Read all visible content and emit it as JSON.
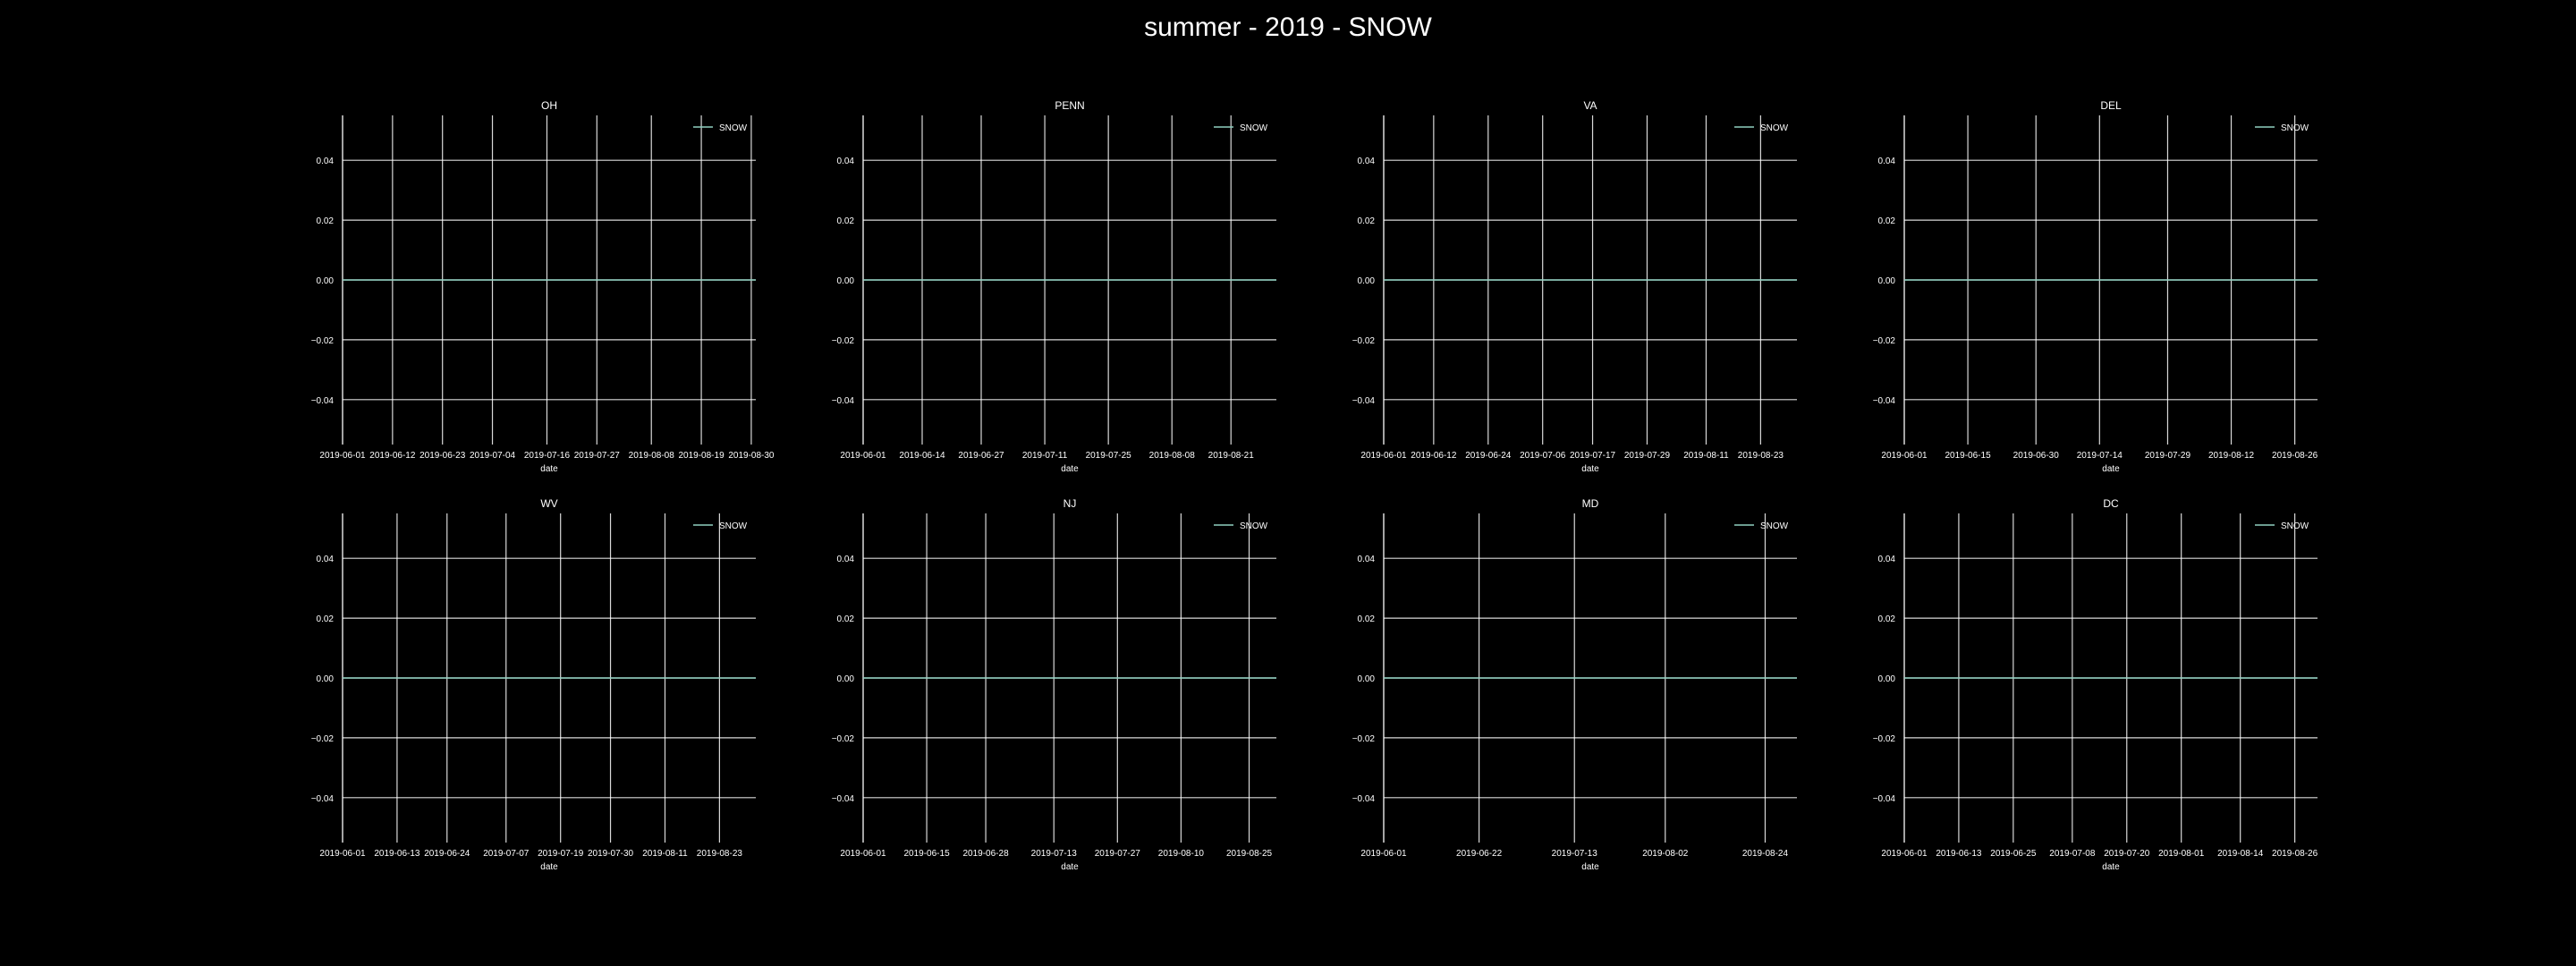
{
  "title": "summer - 2019 - SNOW",
  "colors": {
    "background": "#000000",
    "grid": "#ffffff",
    "text": "#ffffff",
    "series": "#8fd0c0"
  },
  "chart_data": [
    {
      "type": "line",
      "title": "OH",
      "xlabel": "date",
      "ylabel": "",
      "xlim": [
        "2019-06-01",
        "2019-08-31"
      ],
      "ylim": [
        -0.055,
        0.055
      ],
      "x_ticks": [
        "2019-06-01",
        "2019-06-12",
        "2019-06-23",
        "2019-07-04",
        "2019-07-16",
        "2019-07-27",
        "2019-08-08",
        "2019-08-19",
        "2019-08-30"
      ],
      "y_ticks": [
        0.04,
        0.02,
        0.0,
        -0.02,
        -0.04
      ],
      "grid": true,
      "legend": "top-right",
      "series": [
        {
          "name": "SNOW",
          "x": [
            "2019-06-01",
            "2019-08-31"
          ],
          "values": [
            0.0,
            0.0
          ]
        }
      ]
    },
    {
      "type": "line",
      "title": "PENN",
      "xlabel": "date",
      "ylabel": "",
      "xlim": [
        "2019-06-01",
        "2019-08-31"
      ],
      "ylim": [
        -0.055,
        0.055
      ],
      "x_ticks": [
        "2019-06-01",
        "2019-06-14",
        "2019-06-27",
        "2019-07-11",
        "2019-07-25",
        "2019-08-08",
        "2019-08-21"
      ],
      "y_ticks": [
        0.04,
        0.02,
        0.0,
        -0.02,
        -0.04
      ],
      "grid": true,
      "legend": "top-right",
      "series": [
        {
          "name": "SNOW",
          "x": [
            "2019-06-01",
            "2019-08-31"
          ],
          "values": [
            0.0,
            0.0
          ]
        }
      ]
    },
    {
      "type": "line",
      "title": "VA",
      "xlabel": "date",
      "ylabel": "",
      "xlim": [
        "2019-06-01",
        "2019-08-31"
      ],
      "ylim": [
        -0.055,
        0.055
      ],
      "x_ticks": [
        "2019-06-01",
        "2019-06-12",
        "2019-06-24",
        "2019-07-06",
        "2019-07-17",
        "2019-07-29",
        "2019-08-11",
        "2019-08-23"
      ],
      "y_ticks": [
        0.04,
        0.02,
        0.0,
        -0.02,
        -0.04
      ],
      "grid": true,
      "legend": "top-right",
      "series": [
        {
          "name": "SNOW",
          "x": [
            "2019-06-01",
            "2019-08-31"
          ],
          "values": [
            0.0,
            0.0
          ]
        }
      ]
    },
    {
      "type": "line",
      "title": "DEL",
      "xlabel": "date",
      "ylabel": "",
      "xlim": [
        "2019-06-01",
        "2019-08-31"
      ],
      "ylim": [
        -0.055,
        0.055
      ],
      "x_ticks": [
        "2019-06-01",
        "2019-06-15",
        "2019-06-30",
        "2019-07-14",
        "2019-07-29",
        "2019-08-12",
        "2019-08-26"
      ],
      "y_ticks": [
        0.04,
        0.02,
        0.0,
        -0.02,
        -0.04
      ],
      "grid": true,
      "legend": "top-right",
      "series": [
        {
          "name": "SNOW",
          "x": [
            "2019-06-01",
            "2019-08-31"
          ],
          "values": [
            0.0,
            0.0
          ]
        }
      ]
    },
    {
      "type": "line",
      "title": "WV",
      "xlabel": "date",
      "ylabel": "",
      "xlim": [
        "2019-06-01",
        "2019-08-31"
      ],
      "ylim": [
        -0.055,
        0.055
      ],
      "x_ticks": [
        "2019-06-01",
        "2019-06-13",
        "2019-06-24",
        "2019-07-07",
        "2019-07-19",
        "2019-07-30",
        "2019-08-11",
        "2019-08-23"
      ],
      "y_ticks": [
        0.04,
        0.02,
        0.0,
        -0.02,
        -0.04
      ],
      "grid": true,
      "legend": "top-right",
      "series": [
        {
          "name": "SNOW",
          "x": [
            "2019-06-01",
            "2019-08-31"
          ],
          "values": [
            0.0,
            0.0
          ]
        }
      ]
    },
    {
      "type": "line",
      "title": "NJ",
      "xlabel": "date",
      "ylabel": "",
      "xlim": [
        "2019-06-01",
        "2019-08-31"
      ],
      "ylim": [
        -0.055,
        0.055
      ],
      "x_ticks": [
        "2019-06-01",
        "2019-06-15",
        "2019-06-28",
        "2019-07-13",
        "2019-07-27",
        "2019-08-10",
        "2019-08-25"
      ],
      "y_ticks": [
        0.04,
        0.02,
        0.0,
        -0.02,
        -0.04
      ],
      "grid": true,
      "legend": "top-right",
      "series": [
        {
          "name": "SNOW",
          "x": [
            "2019-06-01",
            "2019-08-31"
          ],
          "values": [
            0.0,
            0.0
          ]
        }
      ]
    },
    {
      "type": "line",
      "title": "MD",
      "xlabel": "date",
      "ylabel": "",
      "xlim": [
        "2019-06-01",
        "2019-08-31"
      ],
      "ylim": [
        -0.055,
        0.055
      ],
      "x_ticks": [
        "2019-06-01",
        "2019-06-22",
        "2019-07-13",
        "2019-08-02",
        "2019-08-24"
      ],
      "y_ticks": [
        0.04,
        0.02,
        0.0,
        -0.02,
        -0.04
      ],
      "grid": true,
      "legend": "top-right",
      "series": [
        {
          "name": "SNOW",
          "x": [
            "2019-06-01",
            "2019-08-31"
          ],
          "values": [
            0.0,
            0.0
          ]
        }
      ]
    },
    {
      "type": "line",
      "title": "DC",
      "xlabel": "date",
      "ylabel": "",
      "xlim": [
        "2019-06-01",
        "2019-08-31"
      ],
      "ylim": [
        -0.055,
        0.055
      ],
      "x_ticks": [
        "2019-06-01",
        "2019-06-13",
        "2019-06-25",
        "2019-07-08",
        "2019-07-20",
        "2019-08-01",
        "2019-08-14",
        "2019-08-26"
      ],
      "y_ticks": [
        0.04,
        0.02,
        0.0,
        -0.02,
        -0.04
      ],
      "grid": true,
      "legend": "top-right",
      "series": [
        {
          "name": "SNOW",
          "x": [
            "2019-06-01",
            "2019-08-31"
          ],
          "values": [
            0.0,
            0.0
          ]
        }
      ]
    }
  ]
}
